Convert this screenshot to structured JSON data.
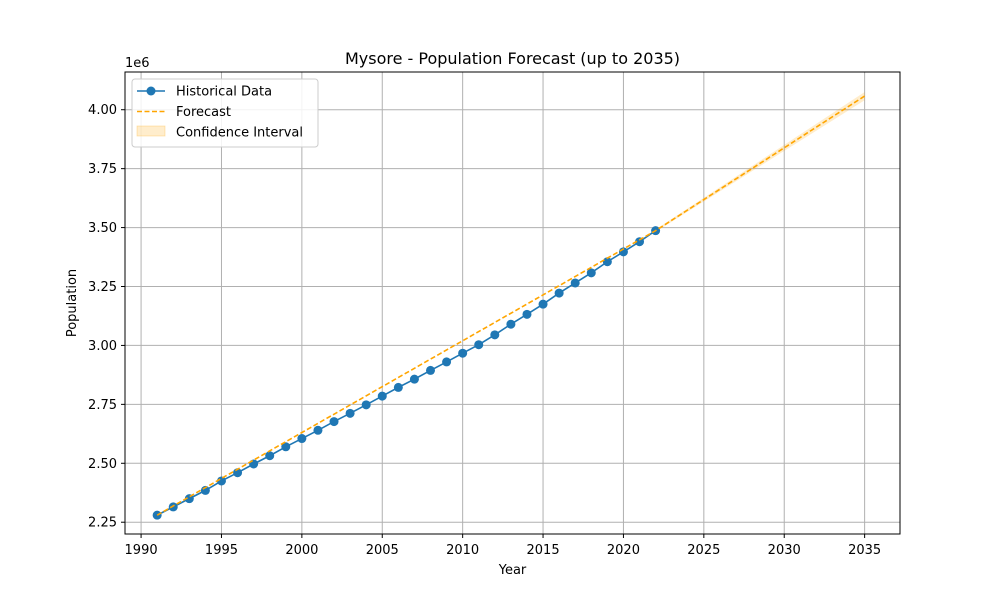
{
  "chart_data": {
    "type": "line",
    "title": "Mysore - Population Forecast (up to 2035)",
    "xlabel": "Year",
    "ylabel": "Population",
    "y_offset_text": "1e6",
    "xlim": [
      1989,
      2037.2
    ],
    "ylim": [
      2.2,
      4.16
    ],
    "x_ticks": [
      1990,
      1995,
      2000,
      2005,
      2010,
      2015,
      2020,
      2025,
      2030,
      2035
    ],
    "y_ticks": [
      2.25,
      2.5,
      2.75,
      3.0,
      3.25,
      3.5,
      3.75,
      4.0
    ],
    "x_tick_labels": [
      "1990",
      "1995",
      "2000",
      "2005",
      "2010",
      "2015",
      "2020",
      "2025",
      "2030",
      "2035"
    ],
    "y_tick_labels": [
      "2.25",
      "2.50",
      "2.75",
      "3.00",
      "3.25",
      "3.50",
      "3.75",
      "4.00"
    ],
    "grid": true,
    "legend_position": "top-left",
    "series": [
      {
        "name": "Historical Data",
        "style": "solid-line-with-circle-markers",
        "color": "#1f77b4",
        "x": [
          1991,
          1992,
          1993,
          1994,
          1995,
          1996,
          1997,
          1998,
          1999,
          2000,
          2001,
          2002,
          2003,
          2004,
          2005,
          2006,
          2007,
          2008,
          2009,
          2010,
          2011,
          2012,
          2013,
          2014,
          2015,
          2016,
          2017,
          2018,
          2019,
          2020,
          2021,
          2022
        ],
        "y": [
          2.28,
          2.315,
          2.35,
          2.385,
          2.425,
          2.46,
          2.497,
          2.532,
          2.57,
          2.605,
          2.64,
          2.677,
          2.712,
          2.748,
          2.785,
          2.822,
          2.857,
          2.894,
          2.93,
          2.967,
          3.003,
          3.045,
          3.09,
          3.132,
          3.175,
          3.222,
          3.265,
          3.308,
          3.355,
          3.397,
          3.44,
          3.487
        ]
      },
      {
        "name": "Forecast",
        "style": "dashed-line",
        "color": "#ffa500",
        "x": [
          1991,
          2022,
          2035
        ],
        "y": [
          2.28,
          3.487,
          4.058
        ]
      },
      {
        "name": "Confidence Interval",
        "style": "shaded-band",
        "color": "#ffa500",
        "x": [
          2022,
          2035
        ],
        "lower": [
          3.482,
          4.04
        ],
        "upper": [
          3.492,
          4.075
        ]
      }
    ]
  }
}
